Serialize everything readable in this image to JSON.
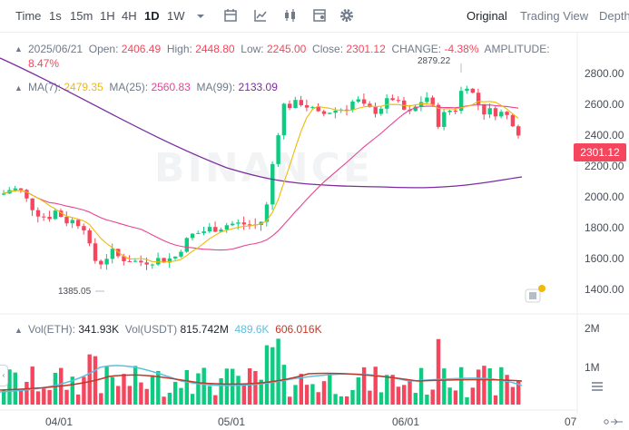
{
  "toolbar": {
    "label": "Time",
    "intervals": [
      "1s",
      "15m",
      "1H",
      "4H",
      "1D",
      "1W"
    ],
    "active_interval": "1D",
    "icons": [
      "chevron-down-icon",
      "calendar-icon",
      "indicator-icon",
      "candle-type-icon",
      "template-icon",
      "gear-icon"
    ],
    "views": [
      "Original",
      "Trading View",
      "Depth"
    ],
    "active_view": "Original"
  },
  "ohlc": {
    "date": "2025/06/21",
    "open_label": "Open:",
    "open": "2406.49",
    "high_label": "High:",
    "high": "2448.80",
    "low_label": "Low:",
    "low": "2245.00",
    "close_label": "Close:",
    "close": "2301.12",
    "change_label": "CHANGE:",
    "change": "-4.38%",
    "amplitude_label": "AMPLITUDE:",
    "amplitude": "8.47%"
  },
  "ma": {
    "ma7_label": "MA(7):",
    "ma7": "2479.35",
    "ma25_label": "MA(25):",
    "ma25": "2560.83",
    "ma99_label": "MA(99):",
    "ma99": "2133.09"
  },
  "price_axis": [
    "2800.00",
    "2600.00",
    "2400.00",
    "2200.00",
    "2000.00",
    "1800.00",
    "1600.00",
    "1400.00"
  ],
  "current_price": "2301.12",
  "high_callout": "2879.22",
  "low_callout": "1385.05",
  "volume": {
    "eth_label": "Vol(ETH):",
    "eth": "341.93K",
    "usdt_label": "Vol(USDT)",
    "usdt": "815.742M",
    "ma_a": "489.6K",
    "ma_b": "606.016K",
    "axis": [
      "2M",
      "1M"
    ]
  },
  "date_axis": [
    "04/01",
    "05/01",
    "06/01",
    "07"
  ],
  "watermark": "BINANCE",
  "colors": {
    "up": "#0ecb81",
    "down": "#f6465d",
    "ma7": "#f0b90b",
    "ma25": "#e84393",
    "ma99": "#7b2c9e",
    "vol_ma1": "#5bc0de",
    "vol_ma2": "#c0392b"
  }
}
